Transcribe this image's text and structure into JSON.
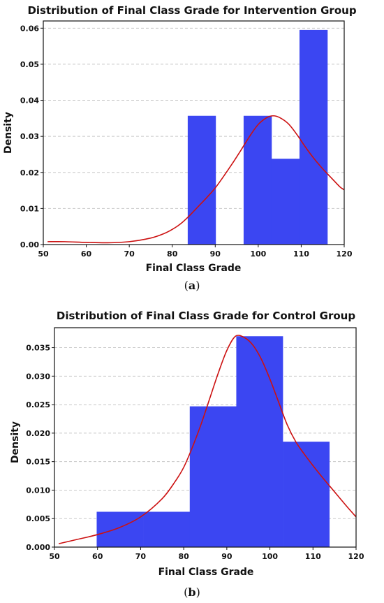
{
  "chart_data": [
    {
      "type": "bar",
      "title": "Distribution of Final Class Grade for Intervention Group",
      "xlabel": "Final Class Grade",
      "ylabel": "Density",
      "xlim": [
        50,
        120
      ],
      "ylim": [
        0,
        0.062
      ],
      "xticks": [
        50,
        60,
        70,
        80,
        90,
        100,
        110,
        120
      ],
      "yticks": [
        0.0,
        0.01,
        0.02,
        0.03,
        0.04,
        0.05,
        0.06
      ],
      "ytick_labels": [
        "0.00",
        "0.01",
        "0.02",
        "0.03",
        "0.04",
        "0.05",
        "0.06"
      ],
      "grid": "horizontal dashed",
      "bins": [
        {
          "x0": 83.6,
          "x1": 90.1,
          "density": 0.0357
        },
        {
          "x0": 90.1,
          "x1": 96.6,
          "density": 0.0
        },
        {
          "x0": 96.6,
          "x1": 103.1,
          "density": 0.0357
        },
        {
          "x0": 103.1,
          "x1": 109.6,
          "density": 0.0238
        },
        {
          "x0": 109.6,
          "x1": 116.1,
          "density": 0.0595
        }
      ],
      "kde": {
        "x": [
          51,
          55,
          60,
          65,
          70,
          75,
          78,
          80,
          82,
          84,
          86,
          88,
          90,
          92,
          94,
          96,
          98,
          100,
          102,
          103.5,
          105,
          107,
          109,
          111,
          113,
          115,
          117,
          119,
          120
        ],
        "y": [
          0.0008,
          0.0008,
          0.0006,
          0.0005,
          0.0008,
          0.0018,
          0.003,
          0.0042,
          0.0058,
          0.008,
          0.0105,
          0.013,
          0.0157,
          0.019,
          0.0225,
          0.0262,
          0.03,
          0.0333,
          0.0352,
          0.0357,
          0.0352,
          0.0335,
          0.0305,
          0.027,
          0.0238,
          0.021,
          0.0185,
          0.016,
          0.0152
        ]
      },
      "colors": {
        "bars": "#3b46f2",
        "kde": "#cc1111"
      },
      "caption_open": "(",
      "caption_letter": "a",
      "caption_close": ")"
    },
    {
      "type": "bar",
      "title": "Distribution of Final Class Grade for Control Group",
      "xlabel": "Final Class Grade",
      "ylabel": "Density",
      "xlim": [
        50,
        120
      ],
      "ylim": [
        0,
        0.0385
      ],
      "xticks": [
        50,
        60,
        70,
        80,
        90,
        100,
        110,
        120
      ],
      "yticks": [
        0.0,
        0.005,
        0.01,
        0.015,
        0.02,
        0.025,
        0.03,
        0.035
      ],
      "ytick_labels": [
        "0.000",
        "0.005",
        "0.010",
        "0.015",
        "0.020",
        "0.025",
        "0.030",
        "0.035"
      ],
      "grid": "horizontal dashed",
      "bins": [
        {
          "x0": 59.8,
          "x1": 70.6,
          "density": 0.0062
        },
        {
          "x0": 70.6,
          "x1": 81.4,
          "density": 0.0062
        },
        {
          "x0": 81.4,
          "x1": 92.2,
          "density": 0.0247
        },
        {
          "x0": 92.2,
          "x1": 103.0,
          "density": 0.037
        },
        {
          "x0": 103.0,
          "x1": 113.8,
          "density": 0.0185
        }
      ],
      "kde": {
        "x": [
          51,
          55,
          60,
          65,
          70,
          75,
          78,
          80,
          82,
          84,
          86,
          88,
          90,
          92,
          94,
          96,
          98,
          100,
          102,
          104,
          106,
          108,
          110,
          112,
          114,
          116,
          118,
          120
        ],
        "y": [
          0.0006,
          0.0013,
          0.0022,
          0.0034,
          0.0053,
          0.0085,
          0.0115,
          0.014,
          0.0175,
          0.0215,
          0.026,
          0.0305,
          0.0345,
          0.037,
          0.0368,
          0.0355,
          0.033,
          0.0295,
          0.0255,
          0.0215,
          0.0185,
          0.0163,
          0.0143,
          0.0124,
          0.0106,
          0.0088,
          0.007,
          0.0053
        ]
      },
      "colors": {
        "bars": "#3b46f2",
        "kde": "#cc1111"
      },
      "caption_open": "(",
      "caption_letter": "b",
      "caption_close": ")"
    }
  ]
}
